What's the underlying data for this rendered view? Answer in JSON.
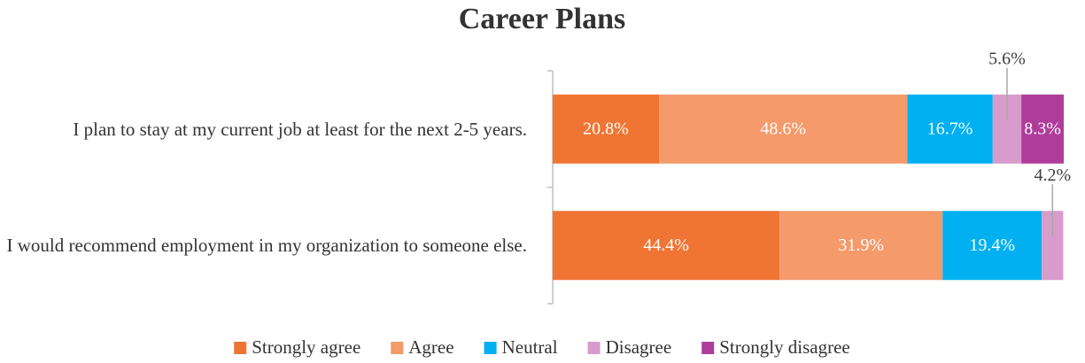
{
  "chart_data": {
    "type": "stacked-bar-horizontal",
    "title": "Career Plans",
    "categories": [
      "I plan to stay at my current job at least for the next 2-5 years.",
      "I would recommend employment in my organization to someone else."
    ],
    "series": [
      {
        "name": "Strongly agree",
        "color": "#f07534",
        "values": [
          20.8,
          44.4
        ],
        "value_labels": [
          "20.8%",
          "44.4%"
        ]
      },
      {
        "name": "Agree",
        "color": "#f49a6b",
        "values": [
          48.6,
          31.9
        ],
        "value_labels": [
          "48.6%",
          "31.9%"
        ]
      },
      {
        "name": "Neutral",
        "color": "#00b0f0",
        "values": [
          16.7,
          19.4
        ],
        "value_labels": [
          "16.7%",
          "19.4%"
        ]
      },
      {
        "name": "Disagree",
        "color": "#d89ccc",
        "values": [
          5.6,
          4.2
        ],
        "value_labels": [
          "5.6%",
          "4.2%"
        ]
      },
      {
        "name": "Strongly disagree",
        "color": "#b03c9a",
        "values": [
          8.3,
          null
        ],
        "value_labels": [
          "8.3%",
          null
        ]
      }
    ],
    "xlim": [
      0,
      100
    ],
    "legend": "bottom"
  }
}
